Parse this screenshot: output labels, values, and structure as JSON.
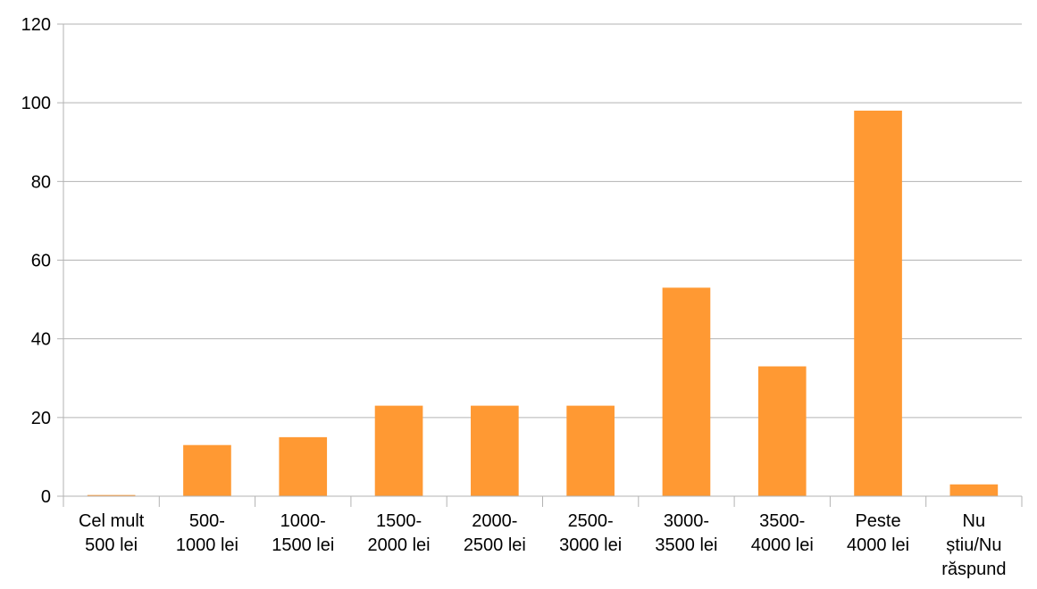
{
  "chart_data": {
    "type": "bar",
    "categories": [
      "Cel mult 500 lei",
      "500-1000 lei",
      "1000-1500 lei",
      "1500-2000 lei",
      "2000-2500 lei",
      "2500-3000 lei",
      "3000-3500 lei",
      "3500-4000 lei",
      "Peste 4000 lei",
      "Nu știu/Nu răspund"
    ],
    "category_lines": [
      [
        "Cel mult",
        "500 lei"
      ],
      [
        "500-",
        "1000 lei"
      ],
      [
        "1000-",
        "1500 lei"
      ],
      [
        "1500-",
        "2000 lei"
      ],
      [
        "2000-",
        "2500 lei"
      ],
      [
        "2500-",
        "3000 lei"
      ],
      [
        "3000-",
        "3500 lei"
      ],
      [
        "3500-",
        "4000 lei"
      ],
      [
        "Peste",
        "4000 lei"
      ],
      [
        "Nu",
        "știu/Nu",
        "răspund"
      ]
    ],
    "values": [
      0.3,
      13,
      15,
      23,
      23,
      23,
      53,
      33,
      98,
      3
    ],
    "ylim": [
      0,
      120
    ],
    "yticks": [
      0,
      20,
      40,
      60,
      80,
      100,
      120
    ],
    "grid": true,
    "bar_color": "#ff9933",
    "grid_color": "#b3b3b3",
    "axis_color": "#b3b3b3",
    "title": "",
    "xlabel": "",
    "ylabel": ""
  }
}
